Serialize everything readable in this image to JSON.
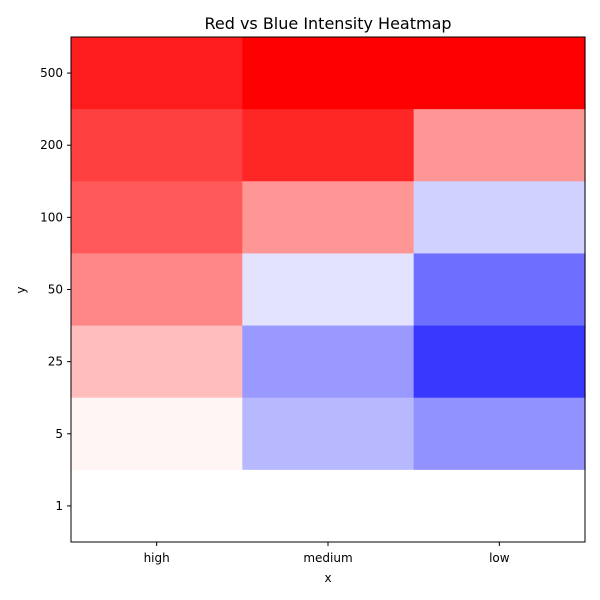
{
  "chart_data": {
    "type": "heatmap",
    "title": "Red vs Blue Intensity Heatmap",
    "xlabel": "x",
    "ylabel": "y",
    "x_categories": [
      "high",
      "medium",
      "low"
    ],
    "y_categories": [
      "1",
      "5",
      "25",
      "50",
      "100",
      "200",
      "500"
    ],
    "colormap": "bwr",
    "value_range": [
      -1,
      1
    ],
    "grid": false,
    "legend": "none",
    "rows": [
      {
        "y": "500",
        "values": [
          0.89,
          1.0,
          1.0
        ]
      },
      {
        "y": "200",
        "values": [
          0.75,
          0.85,
          0.41
        ]
      },
      {
        "y": "100",
        "values": [
          0.65,
          0.41,
          -0.18
        ]
      },
      {
        "y": "50",
        "values": [
          0.47,
          -0.11,
          -0.57
        ]
      },
      {
        "y": "25",
        "values": [
          0.26,
          -0.4,
          -0.78
        ]
      },
      {
        "y": "5",
        "values": [
          0.04,
          -0.28,
          -0.43
        ]
      },
      {
        "y": "1",
        "values": [
          0.0,
          0.0,
          0.0
        ]
      }
    ]
  }
}
